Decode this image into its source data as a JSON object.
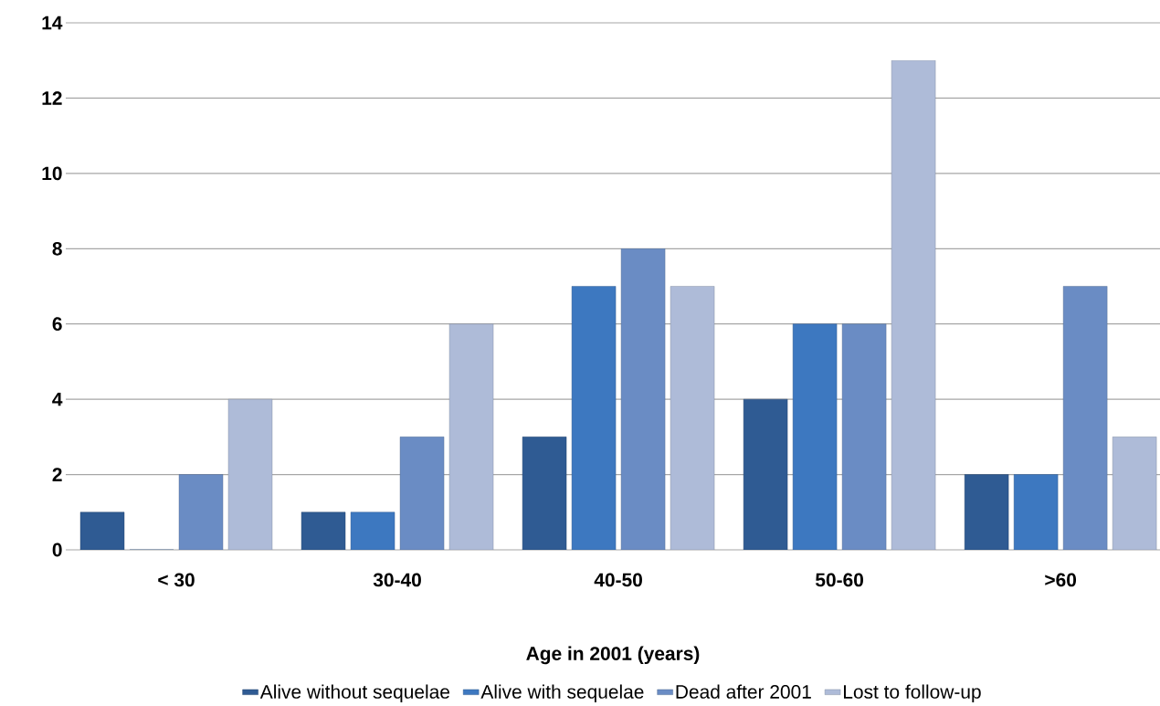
{
  "chart_data": {
    "type": "bar",
    "xlabel": "Age in 2001 (years)",
    "categories": [
      "< 30",
      "30-40",
      "40-50",
      "50-60",
      ">60"
    ],
    "series": [
      {
        "name": "Alive without sequelae",
        "color": "#2f5b93",
        "values": [
          1,
          1,
          3,
          4,
          2
        ]
      },
      {
        "name": "Alive with sequelae",
        "color": "#3d78c0",
        "values": [
          0,
          1,
          7,
          6,
          2
        ]
      },
      {
        "name": "Dead after 2001",
        "color": "#6a8cc4",
        "values": [
          2,
          3,
          8,
          6,
          7
        ]
      },
      {
        "name": "Lost to follow-up",
        "color": "#aebbd8",
        "values": [
          4,
          6,
          7,
          13,
          3
        ]
      }
    ],
    "ylim": [
      0,
      14
    ],
    "yticks": [
      0,
      2,
      4,
      6,
      8,
      10,
      12,
      14
    ],
    "grid": "y",
    "legend": "bottom"
  }
}
